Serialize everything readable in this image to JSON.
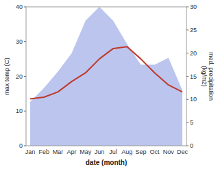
{
  "chart_data": {
    "type": "line",
    "categories": [
      "Jan",
      "Feb",
      "Mar",
      "Apr",
      "May",
      "Jun",
      "Jul",
      "Aug",
      "Sep",
      "Oct",
      "Nov",
      "Dec"
    ],
    "series": [
      {
        "type": "area",
        "axis": "y2",
        "color": "#bbc5ee",
        "values": [
          9.5,
          12.5,
          16.0,
          20.0,
          27.0,
          30.0,
          27.0,
          22.0,
          17.5,
          17.5,
          19.0,
          12.0
        ]
      },
      {
        "type": "line",
        "color": "#c0392b",
        "values": [
          13.5,
          14.0,
          15.5,
          18.5,
          21.0,
          25.0,
          28.0,
          28.5,
          25.0,
          21.0,
          17.5,
          15.5
        ]
      }
    ],
    "xlabel": "date (month)",
    "ylabel": "max temp (C)",
    "y2label": "med. precipitation\n(kg/m2)",
    "ylim": [
      0,
      40
    ],
    "yticks": [
      0,
      10,
      20,
      30,
      40
    ],
    "y2lim": [
      0,
      30
    ],
    "y2ticks": [
      0,
      5,
      10,
      15,
      20,
      25,
      30
    ],
    "grid": false
  }
}
